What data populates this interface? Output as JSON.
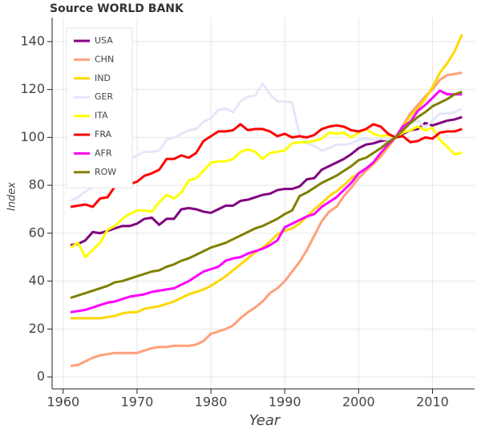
{
  "chart_data": {
    "type": "line",
    "title": "Source WORLD BANK",
    "xlabel": "Year",
    "ylabel": "Index",
    "x": [
      1961,
      1962,
      1963,
      1964,
      1965,
      1966,
      1967,
      1968,
      1969,
      1970,
      1971,
      1972,
      1973,
      1974,
      1975,
      1976,
      1977,
      1978,
      1979,
      1980,
      1981,
      1982,
      1983,
      1984,
      1985,
      1986,
      1987,
      1988,
      1989,
      1990,
      1991,
      1992,
      1993,
      1994,
      1995,
      1996,
      1997,
      1998,
      1999,
      2000,
      2001,
      2002,
      2003,
      2004,
      2005,
      2006,
      2007,
      2008,
      2009,
      2010,
      2011,
      2012,
      2013,
      2014
    ],
    "series": [
      {
        "name": "USA",
        "color": "#800080",
        "values": [
          55,
          55.5,
          57,
          60.5,
          60,
          61,
          62,
          63,
          63,
          64,
          66,
          66.5,
          63.5,
          66,
          66,
          70,
          70.5,
          70,
          69,
          68.5,
          70,
          71.5,
          71.5,
          73.5,
          74,
          75,
          76,
          76.5,
          78,
          78.5,
          78.5,
          79.5,
          82.5,
          83,
          86.5,
          88,
          89.5,
          91,
          93,
          95.5,
          97,
          97.5,
          98.5,
          99,
          100,
          101.5,
          103,
          103.5,
          106,
          105,
          106,
          107,
          107.5,
          108.5
        ]
      },
      {
        "name": "CHN",
        "color": "#ffa07a",
        "values": [
          4.5,
          5,
          6.5,
          8,
          9,
          9.5,
          10,
          10,
          10,
          10,
          11,
          12,
          12.5,
          12.5,
          13,
          13,
          13,
          13.5,
          15,
          18,
          19,
          20,
          21.5,
          24.5,
          27,
          29,
          31.5,
          35,
          37,
          40,
          44,
          48,
          53,
          59,
          65,
          69,
          71,
          75.5,
          79,
          83,
          86,
          89,
          92,
          96,
          100,
          105,
          110,
          113.5,
          117,
          120,
          124,
          126,
          126.5,
          127
        ]
      },
      {
        "name": "IND",
        "color": "#ffd700",
        "values": [
          24.5,
          24.5,
          24.5,
          24.5,
          24.5,
          25,
          25.5,
          26.5,
          27,
          27,
          28.5,
          29,
          29.5,
          30.5,
          31.5,
          33,
          34.5,
          35.5,
          36.5,
          38,
          40,
          42,
          44.5,
          47,
          49.5,
          52,
          54,
          56.5,
          59.5,
          61,
          62,
          64,
          67,
          70,
          72.5,
          75.5,
          77.5,
          80,
          83,
          85,
          87,
          89,
          93,
          96.5,
          100,
          104,
          109,
          112,
          116,
          121,
          127,
          131,
          136,
          143
        ]
      },
      {
        "name": "GER",
        "color": "#e6e6fa",
        "values": [
          73.5,
          75,
          77.5,
          79,
          80.5,
          83.5,
          85,
          87.5,
          91,
          92.5,
          94,
          94,
          94.5,
          99,
          100,
          101.5,
          103,
          103.5,
          106.5,
          108,
          111.5,
          112,
          110.5,
          115,
          117,
          117.5,
          122.5,
          118,
          115,
          115,
          114.5,
          101,
          97.5,
          96.5,
          94.5,
          95.5,
          97,
          97,
          97.5,
          99,
          99.5,
          99,
          99.5,
          99,
          100,
          103,
          106,
          107,
          104,
          107,
          110,
          110,
          110.5,
          112
        ]
      },
      {
        "name": "ITA",
        "color": "#ffff00",
        "values": [
          54,
          56,
          50,
          53,
          56,
          61.5,
          63,
          66,
          68,
          69.5,
          69.5,
          69,
          73,
          76,
          74.5,
          77,
          82,
          83,
          86,
          89.5,
          90,
          90,
          91,
          94,
          95,
          94,
          91,
          93.5,
          94,
          94.5,
          97.5,
          98,
          98,
          98.5,
          99.5,
          102,
          101.5,
          102,
          100,
          102,
          103.5,
          101.5,
          100.5,
          101,
          100,
          102,
          103,
          104.5,
          103,
          104,
          99,
          96,
          93,
          93.5
        ]
      },
      {
        "name": "FRA",
        "color": "#ff0000",
        "values": [
          71,
          71.5,
          72,
          71,
          74.5,
          75,
          79.5,
          82,
          80.5,
          81.5,
          84,
          85,
          86.5,
          91,
          91,
          92.5,
          91.5,
          93.5,
          98.5,
          100.5,
          102.5,
          102.5,
          103,
          105.5,
          103,
          103.5,
          103.5,
          102.5,
          100.5,
          101.5,
          100,
          100.5,
          100,
          101,
          103.5,
          104.5,
          105,
          104.5,
          103,
          102.5,
          103.5,
          105.5,
          104.5,
          101.5,
          100,
          100.5,
          98,
          98.5,
          100,
          99.5,
          102,
          102.5,
          102.5,
          103.5
        ]
      },
      {
        "name": "AFR",
        "color": "#ff00ff",
        "values": [
          27,
          27.5,
          28,
          29,
          30,
          31,
          31.5,
          32.5,
          33.5,
          34,
          34.5,
          35.5,
          36,
          36.5,
          37,
          38.5,
          40,
          42,
          44,
          45,
          46,
          48.5,
          49.5,
          50,
          51.5,
          52.5,
          53.5,
          55,
          57,
          62.5,
          64,
          65.5,
          67,
          68,
          71,
          73,
          75,
          78,
          81,
          85,
          87,
          89.5,
          93.5,
          97,
          100,
          104.5,
          106.5,
          111,
          113.5,
          116.5,
          119.5,
          118,
          118,
          118
        ]
      },
      {
        "name": "ROW",
        "color": "#808000",
        "values": [
          33,
          34,
          35,
          36,
          37,
          38,
          39.5,
          40,
          41,
          42,
          43,
          44,
          44.5,
          46,
          47,
          48.5,
          49.5,
          51,
          52.5,
          54,
          55,
          56,
          57.5,
          59,
          60.5,
          62,
          63,
          64.5,
          66,
          68,
          69.5,
          75.5,
          77,
          79,
          81,
          82.5,
          84,
          86,
          88,
          90.5,
          91.5,
          93.5,
          95.5,
          98,
          100,
          103,
          106,
          108.5,
          110.5,
          113,
          114.5,
          116,
          118,
          119
        ]
      }
    ],
    "xlim": [
      1958.5,
      2015.7
    ],
    "xticks": [
      1960,
      1970,
      1980,
      1990,
      2000,
      2010
    ],
    "ylim": [
      -5,
      150
    ],
    "yticks": [
      0,
      20,
      40,
      60,
      80,
      100,
      120,
      140
    ],
    "grid": true,
    "legend": "top_left"
  }
}
